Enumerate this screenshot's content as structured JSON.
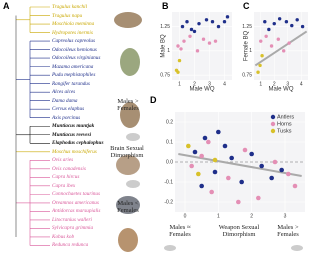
{
  "panel_a": {
    "panel_label": "A",
    "species": [
      {
        "name": "Tragulus kanchil",
        "color": "#c9a800",
        "bold": false
      },
      {
        "name": "Tragulus napu",
        "color": "#c9a800",
        "bold": false
      },
      {
        "name": "Moschiola meminna",
        "color": "#c9a800",
        "bold": false
      },
      {
        "name": "Hydropotes inermis",
        "color": "#c9a800",
        "bold": false
      },
      {
        "name": "Capreolus capreolus",
        "color": "#1f2f8a",
        "bold": false
      },
      {
        "name": "Odocoileus hemionus",
        "color": "#1f2f8a",
        "bold": false
      },
      {
        "name": "Odocoileus virginianus",
        "color": "#1f2f8a",
        "bold": false
      },
      {
        "name": "Mazama americana",
        "color": "#1f2f8a",
        "bold": false
      },
      {
        "name": "Pudu mephistophiles",
        "color": "#1f2f8a",
        "bold": false
      },
      {
        "name": "Rangifer tarandus",
        "color": "#1f2f8a",
        "bold": false
      },
      {
        "name": "Alces alces",
        "color": "#1f2f8a",
        "bold": false
      },
      {
        "name": "Dama dama",
        "color": "#1f2f8a",
        "bold": false
      },
      {
        "name": "Cervus elaphus",
        "color": "#1f2f8a",
        "bold": false
      },
      {
        "name": "Axis porcinus",
        "color": "#1f2f8a",
        "bold": false
      },
      {
        "name": "Muntiacus muntjak",
        "color": "#111111",
        "bold": true
      },
      {
        "name": "Muntiacus reevesi",
        "color": "#111111",
        "bold": true
      },
      {
        "name": "Elaphodus cephalophus",
        "color": "#111111",
        "bold": true
      },
      {
        "name": "Moschus moschiferus",
        "color": "#c9a800",
        "bold": false
      },
      {
        "name": "Ovis aries",
        "color": "#d9589a",
        "bold": false
      },
      {
        "name": "Ovis canadensis",
        "color": "#d9589a",
        "bold": false
      },
      {
        "name": "Capra hircus",
        "color": "#d9589a",
        "bold": false
      },
      {
        "name": "Capra ibex",
        "color": "#d9589a",
        "bold": false
      },
      {
        "name": "Connochaetes taurinus",
        "color": "#d9589a",
        "bold": false
      },
      {
        "name": "Oreamnos americanus",
        "color": "#d9589a",
        "bold": false
      },
      {
        "name": "Antidorcas marsupialis",
        "color": "#d9589a",
        "bold": false
      },
      {
        "name": "Litocranius walleri",
        "color": "#d9589a",
        "bold": false
      },
      {
        "name": "Sylvicapra grimmia",
        "color": "#d9589a",
        "bold": false
      },
      {
        "name": "Kobus kob",
        "color": "#d9589a",
        "bold": false
      },
      {
        "name": "Redunca redunca",
        "color": "#d9589a",
        "bold": false
      }
    ]
  },
  "chart_data": [
    {
      "type": "scatter",
      "panel_label": "B",
      "x_label": "Male WQ",
      "y_label": "Male BQ",
      "xlim": [
        0.5,
        4.5
      ],
      "ylim": [
        0.7,
        1.4
      ],
      "xticks": [
        1,
        2,
        3,
        4
      ],
      "yticks": [
        0.75,
        1,
        1.25
      ],
      "series": [
        {
          "color": "#1f2f8a",
          "x": [
            1.2,
            1.5,
            1.8,
            2.0,
            2.3,
            2.8,
            3.2,
            3.6,
            4.0,
            4.2
          ],
          "values": [
            1.25,
            1.3,
            1.22,
            1.2,
            1.28,
            1.32,
            1.3,
            1.25,
            1.3,
            1.35
          ]
        },
        {
          "color": "#e48fb5",
          "x": [
            0.9,
            1.1,
            1.3,
            1.7,
            2.2,
            2.6,
            3.0,
            3.4
          ],
          "values": [
            1.05,
            1.02,
            1.1,
            1.15,
            1.0,
            1.12,
            1.08,
            1.1
          ]
        },
        {
          "color": "#d8c12a",
          "x": [
            0.8,
            0.9,
            1.0
          ],
          "values": [
            0.8,
            0.78,
            0.9
          ]
        }
      ]
    },
    {
      "type": "scatter",
      "panel_label": "C",
      "x_label": "Male WQ",
      "y_label": "Female BQ",
      "xlim": [
        0.5,
        4.5
      ],
      "ylim": [
        0.7,
        1.4
      ],
      "xticks": [
        1,
        2,
        3,
        4
      ],
      "yticks": [
        0.75,
        1,
        1.25
      ],
      "series": [
        {
          "color": "#1f2f8a",
          "x": [
            1.3,
            1.6,
            2.0,
            2.4,
            2.9,
            3.3,
            3.7,
            4.1
          ],
          "values": [
            1.3,
            1.22,
            1.28,
            1.33,
            1.3,
            1.26,
            1.32,
            1.25
          ]
        },
        {
          "color": "#e48fb5",
          "x": [
            1.0,
            1.4,
            1.8,
            2.3,
            2.7,
            3.1
          ],
          "values": [
            1.1,
            1.15,
            1.05,
            1.12,
            1.0,
            1.08
          ]
        },
        {
          "color": "#d8c12a",
          "x": [
            0.8,
            0.95,
            1.1
          ],
          "values": [
            0.78,
            0.85,
            0.95
          ]
        }
      ],
      "fit_line": {
        "x": [
          0.6,
          4.4
        ],
        "y": [
          0.85,
          1.2
        ]
      }
    },
    {
      "type": "scatter",
      "panel_label": "D",
      "xlim": [
        -0.3,
        3.6
      ],
      "ylim": [
        -0.25,
        0.25
      ],
      "xticks": [
        0,
        1,
        2,
        3
      ],
      "yticks": [
        -0.2,
        -0.1,
        {
          "value": 0,
          "label": "0.0"
        },
        0.1,
        0.2
      ],
      "legend": "upper-right",
      "series": [
        {
          "name": "Antlers",
          "color": "#1f2f8a",
          "x": [
            0.3,
            0.6,
            0.9,
            1.2,
            1.4,
            1.7,
            2.0,
            2.3,
            2.6,
            2.9,
            1.0,
            0.5
          ],
          "values": [
            0.05,
            0.12,
            -0.05,
            0.08,
            0.02,
            -0.1,
            0.04,
            -0.02,
            -0.08,
            -0.04,
            0.15,
            -0.12
          ]
        },
        {
          "name": "Horns",
          "color": "#e48fb5",
          "x": [
            0.2,
            0.5,
            0.8,
            1.3,
            1.8,
            2.2,
            2.7,
            3.1,
            3.3,
            0.7,
            1.6
          ],
          "values": [
            -0.02,
            0.03,
            -0.15,
            -0.08,
            0.06,
            -0.18,
            0.0,
            -0.06,
            -0.12,
            0.1,
            -0.2
          ]
        },
        {
          "name": "Tusks",
          "color": "#d8c12a",
          "x": [
            0.1,
            0.4,
            0.9
          ],
          "values": [
            0.08,
            -0.06,
            0.01
          ]
        }
      ],
      "fit_line": {
        "x": [
          -0.2,
          3.5
        ],
        "y": [
          0.04,
          -0.07
        ]
      },
      "reference_line": 0,
      "annotations": [
        "Males > Females",
        "Brain Sexual Dimorphism",
        "Males < Females",
        "Males ≈ Females",
        "Weapon Sexual Dimorphism",
        "Males > Females"
      ]
    }
  ]
}
